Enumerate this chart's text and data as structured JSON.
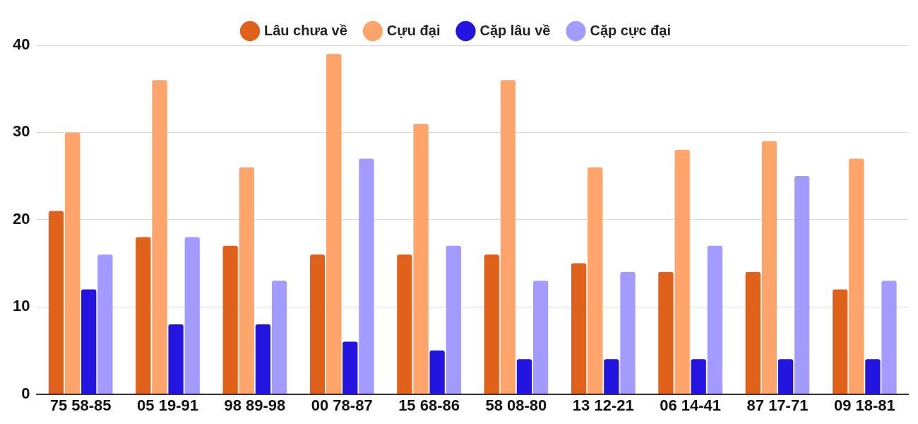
{
  "chart_data": {
    "type": "bar",
    "categories": [
      "75 58-85",
      "05 19-91",
      "98 89-98",
      "00 78-87",
      "15 68-86",
      "58 08-80",
      "13 12-21",
      "06 14-41",
      "87 17-71",
      "09 18-81"
    ],
    "series": [
      {
        "name": "Lâu chưa về",
        "color": "#e0621a",
        "values": [
          21,
          18,
          17,
          16,
          16,
          16,
          15,
          14,
          14,
          12
        ]
      },
      {
        "name": "Cựu đại",
        "color": "#ffa46b",
        "values": [
          30,
          36,
          26,
          39,
          31,
          36,
          26,
          28,
          29,
          27
        ]
      },
      {
        "name": "Cặp lâu về",
        "color": "#2314e0",
        "values": [
          12,
          8,
          8,
          6,
          5,
          4,
          4,
          4,
          4,
          4
        ]
      },
      {
        "name": "Cặp cực đại",
        "color": "#a39bff",
        "values": [
          16,
          18,
          13,
          27,
          17,
          13,
          14,
          17,
          25,
          13
        ]
      }
    ],
    "ylim": [
      0,
      40
    ],
    "yticks": [
      0,
      10,
      20,
      30,
      40
    ],
    "grid": "y",
    "legend": "top"
  }
}
